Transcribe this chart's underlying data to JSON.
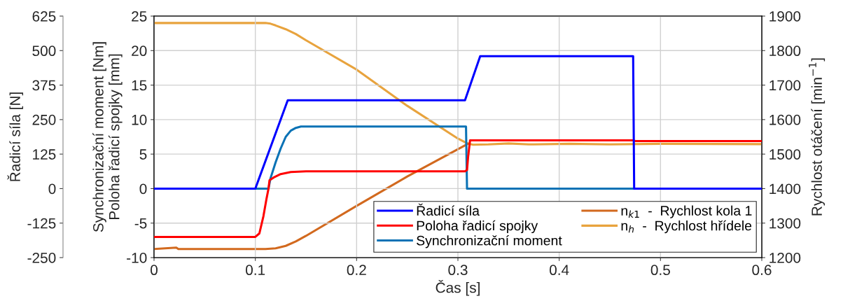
{
  "chart_data": {
    "type": "line",
    "xlabel": "Čas [s]",
    "ylabel": "Synchronizační moment [Nm]\nPoloha řadicí spojky [mm]",
    "y2label": "Rychlost otáčení [min$^{−1}$]",
    "y3label": "Řadicí síla [N]",
    "xlim": [
      0,
      0.6
    ],
    "xticks": [
      0,
      0.1,
      0.2,
      0.3,
      0.4,
      0.5,
      0.6
    ],
    "ylim": [
      -10,
      25
    ],
    "yticks": [
      -10,
      -5,
      0,
      5,
      10,
      15,
      20,
      25
    ],
    "y2lim": [
      1200,
      1900
    ],
    "y2ticks": [
      1200,
      1300,
      1400,
      1500,
      1600,
      1700,
      1800,
      1900
    ],
    "y3lim": [
      -250,
      625
    ],
    "y3ticks": [
      -250,
      -125,
      0,
      125,
      250,
      375,
      500,
      625
    ],
    "grid": true,
    "legend": "bottom right",
    "line_style": "solid",
    "marker": "none",
    "series": [
      {
        "name": "Řadicí síla",
        "color": "#0000ff",
        "axis": "y3",
        "x": [
          0,
          0.1,
          0.132,
          0.307,
          0.322,
          0.473,
          0.474,
          0.6
        ],
        "values": [
          0,
          0,
          320,
          320,
          480,
          480,
          0,
          0
        ]
      },
      {
        "name": "Poloha řadicí spojky",
        "color": "#ff0000",
        "x": [
          0,
          0.1,
          0.104,
          0.108,
          0.111,
          0.113,
          0.114,
          0.118,
          0.125,
          0.135,
          0.15,
          0.307,
          0.309,
          0.31,
          0.312,
          0.473,
          0.475,
          0.6
        ],
        "values": [
          -7,
          -7,
          -6.5,
          -4,
          -1.5,
          0,
          1.2,
          1.6,
          2.1,
          2.4,
          2.5,
          2.5,
          2.7,
          4.5,
          7,
          7,
          6.9,
          6.9
        ]
      },
      {
        "name": "Synchronizační moment",
        "color": "#0a72b5",
        "x": [
          0,
          0.113,
          0.115,
          0.12,
          0.125,
          0.13,
          0.135,
          0.14,
          0.145,
          0.15,
          0.308,
          0.309,
          0.6
        ],
        "values": [
          0,
          0,
          1.5,
          3.8,
          5.8,
          7.5,
          8.4,
          8.8,
          9,
          9,
          9,
          0,
          0
        ]
      },
      {
        "name": "n$_{k1}$  -  Rychlost kola 1",
        "color": "#d2691e",
        "axis": "y2",
        "x": [
          0,
          0.022,
          0.024,
          0.11,
          0.12,
          0.13,
          0.14,
          0.15,
          0.2,
          0.25,
          0.31
        ],
        "values": [
          1225,
          1229,
          1225,
          1225,
          1227,
          1234,
          1247,
          1263,
          1350,
          1435,
          1530
        ]
      },
      {
        "name": "n$_{h}$  -  Rychlost hřídele",
        "color": "#e8a33d",
        "axis": "y2",
        "x": [
          0,
          0.11,
          0.115,
          0.12,
          0.13,
          0.14,
          0.15,
          0.2,
          0.25,
          0.3,
          0.31,
          0.315,
          0.33,
          0.35,
          0.37,
          0.41,
          0.45,
          0.5,
          0.6
        ],
        "values": [
          1880,
          1880,
          1878,
          1873,
          1862,
          1848,
          1830,
          1745,
          1640,
          1545,
          1530,
          1527,
          1528,
          1531,
          1528,
          1530,
          1528,
          1530,
          1529
        ]
      }
    ]
  }
}
